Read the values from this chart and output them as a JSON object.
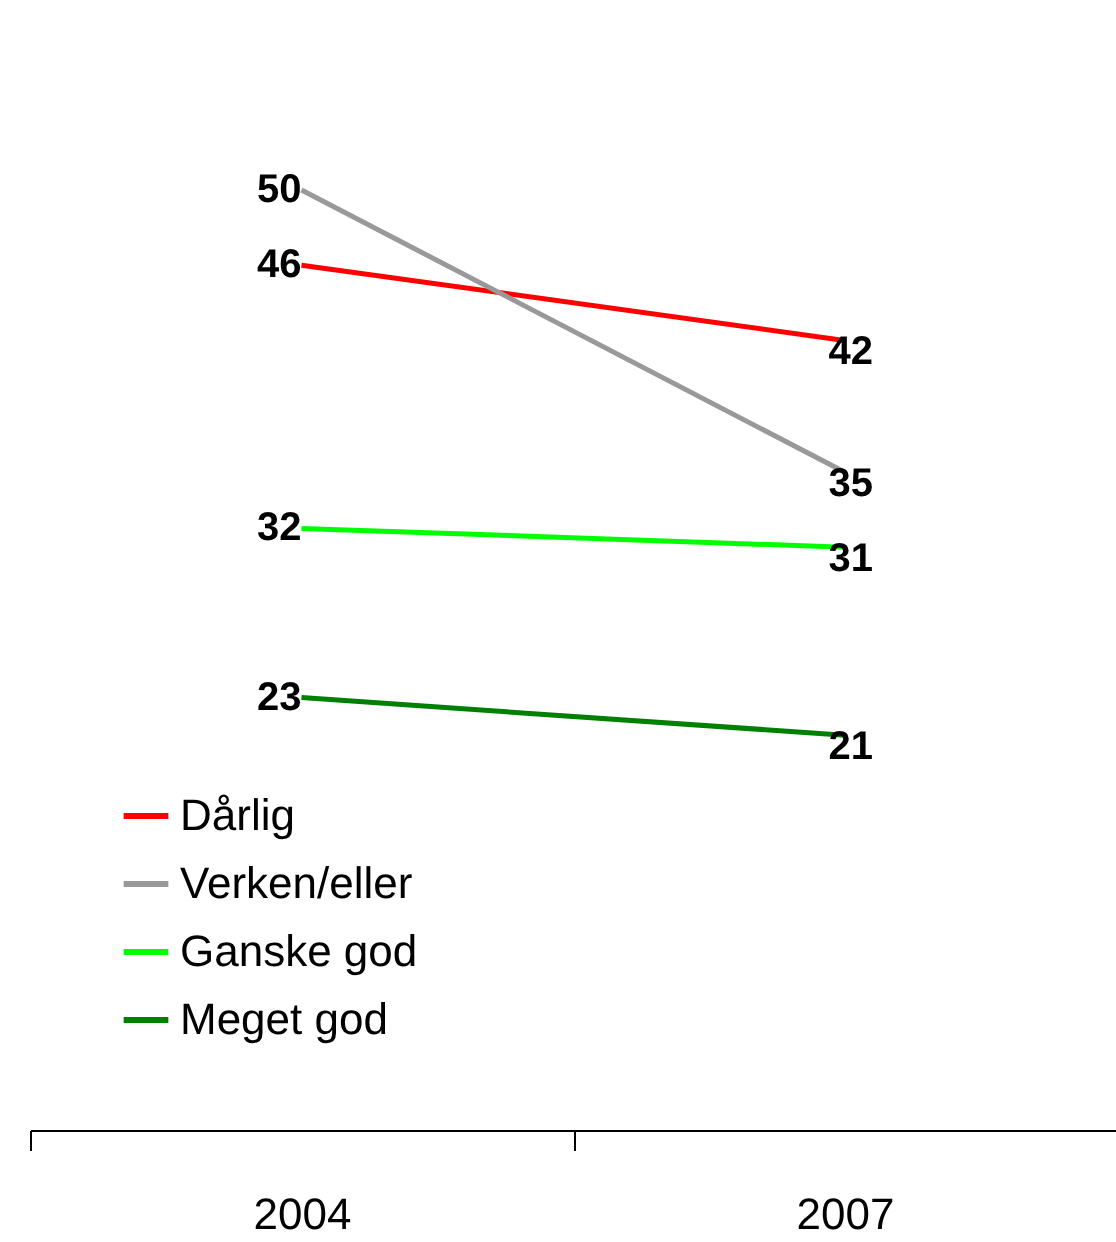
{
  "chart_data": {
    "type": "line",
    "categories": [
      "2004",
      "2007"
    ],
    "series": [
      {
        "name": "Dårlig",
        "color": "#ff0000",
        "values": [
          46,
          42
        ]
      },
      {
        "name": "Verken/eller",
        "color": "#999999",
        "values": [
          50,
          35
        ]
      },
      {
        "name": "Ganske god",
        "color": "#00ff00",
        "values": [
          32,
          31
        ]
      },
      {
        "name": "Meget god",
        "color": "#008000",
        "values": [
          23,
          21
        ]
      }
    ],
    "data_labels": true,
    "legend": "bottom left",
    "marker": "none",
    "grid": false
  }
}
